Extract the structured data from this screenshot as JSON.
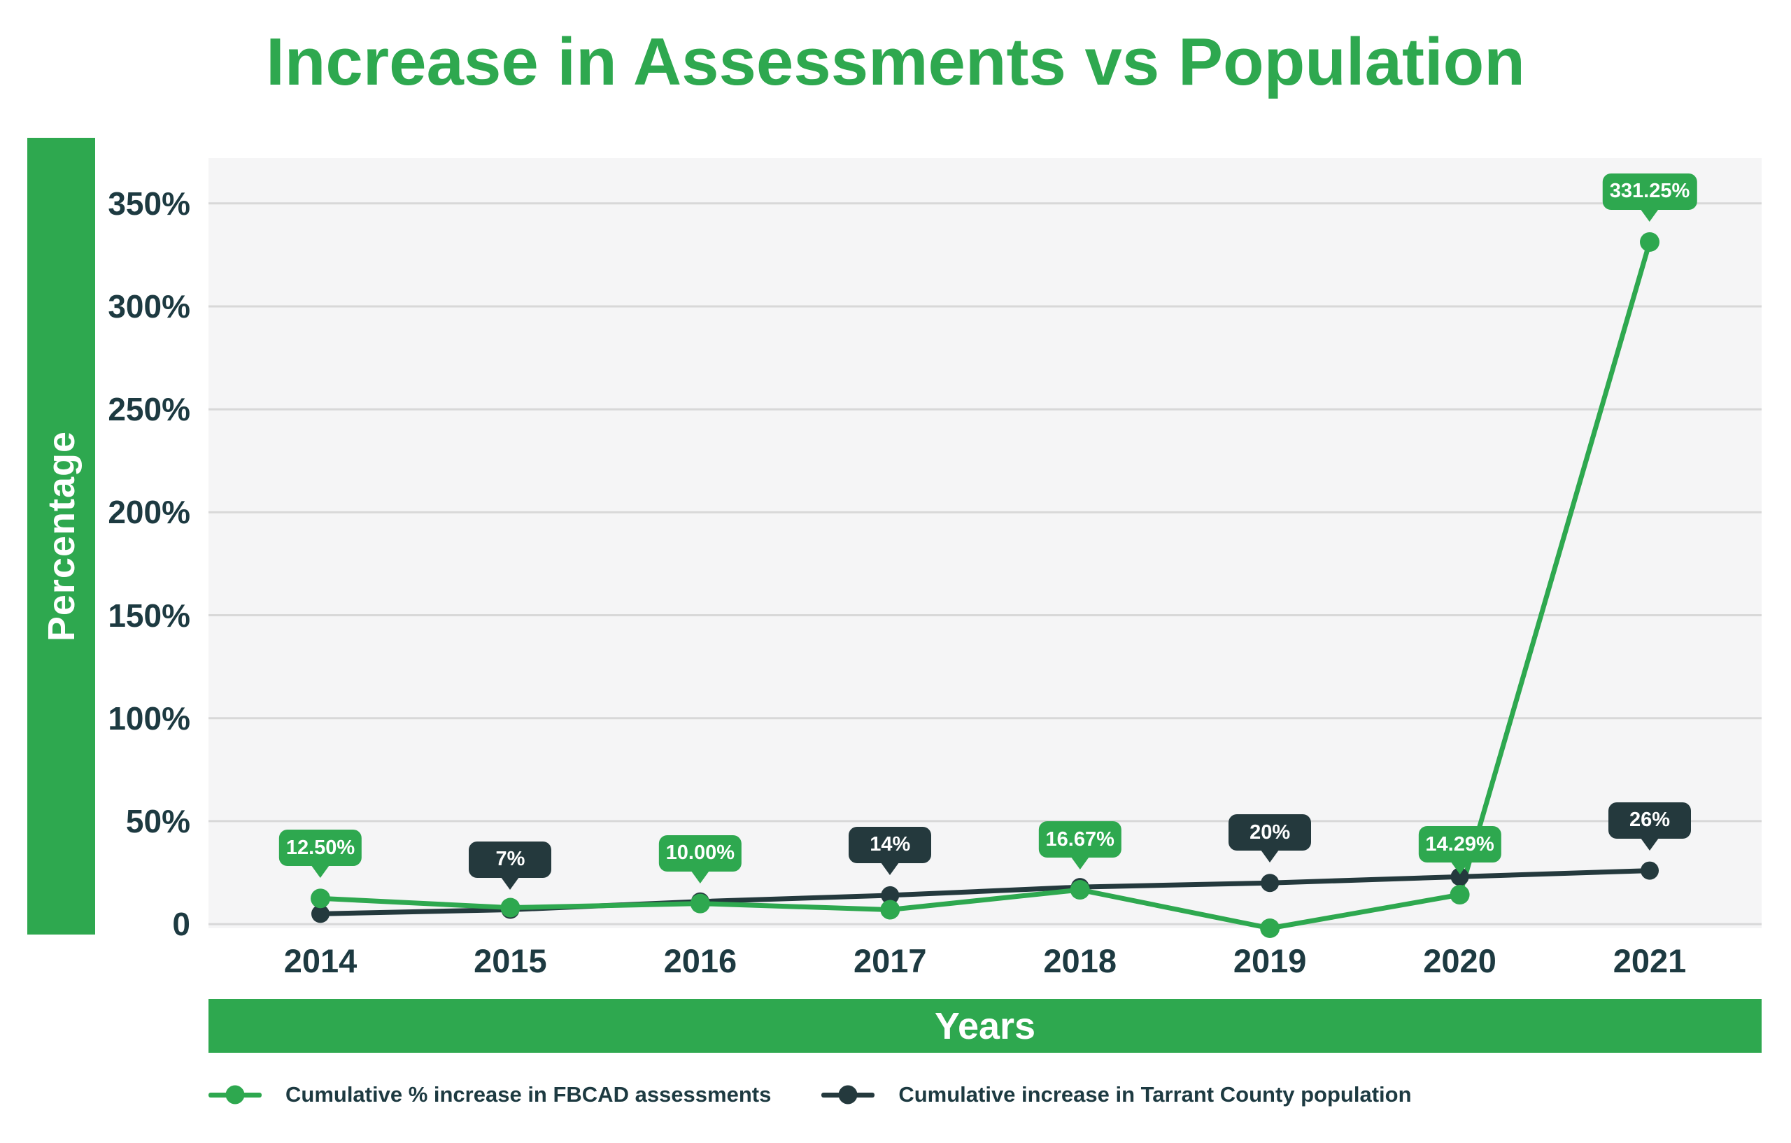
{
  "title": {
    "text": "Increase in Assessments vs Population"
  },
  "y_axis": {
    "label": "Percentage",
    "ticks": [
      {
        "label": "0",
        "value": 0
      },
      {
        "label": "50%",
        "value": 50
      },
      {
        "label": "100%",
        "value": 100
      },
      {
        "label": "150%",
        "value": 150
      },
      {
        "label": "200%",
        "value": 200
      },
      {
        "label": "250%",
        "value": 250
      },
      {
        "label": "300%",
        "value": 300
      },
      {
        "label": "350%",
        "value": 350
      }
    ]
  },
  "x_axis": {
    "label": "Years",
    "categories": [
      "2014",
      "2015",
      "2016",
      "2017",
      "2018",
      "2019",
      "2020",
      "2021"
    ]
  },
  "chart_data": {
    "type": "line",
    "categories": [
      "2014",
      "2015",
      "2016",
      "2017",
      "2018",
      "2019",
      "2020",
      "2021"
    ],
    "series": [
      {
        "name": "Cumulative % increase in FBCAD assessments",
        "color": "#2ea84f",
        "values": [
          12.5,
          8,
          10,
          7,
          16.67,
          -2,
          14.29,
          331.25
        ],
        "labeled_points": {
          "2014": "12.50%",
          "2016": "10.00%",
          "2018": "16.67%",
          "2020": "14.29%",
          "2021": "331.25%"
        }
      },
      {
        "name": "Cumulative increase in Tarrant County population",
        "color": "#24393d",
        "values": [
          5,
          7,
          11,
          14,
          18,
          20,
          23,
          26
        ],
        "labeled_points": {
          "2015": "7%",
          "2017": "14%",
          "2019": "20%",
          "2021": "26%"
        }
      }
    ],
    "annotations": [
      {
        "category": "2014",
        "series": 0,
        "text": "12.50%"
      },
      {
        "category": "2015",
        "series": 1,
        "text": "7%"
      },
      {
        "category": "2016",
        "series": 0,
        "text": "10.00%"
      },
      {
        "category": "2017",
        "series": 1,
        "text": "14%"
      },
      {
        "category": "2018",
        "series": 0,
        "text": "16.67%"
      },
      {
        "category": "2019",
        "series": 1,
        "text": "20%"
      },
      {
        "category": "2020",
        "series": 0,
        "text": "14.29%"
      },
      {
        "category": "2021",
        "series": 0,
        "text": "331.25%"
      },
      {
        "category": "2021",
        "series": 1,
        "text": "26%"
      }
    ],
    "title": "Increase in Assessments vs Population",
    "xlabel": "Years",
    "ylabel": "Percentage",
    "ylim_drawn": [
      -2,
      372
    ],
    "grid": true,
    "legend_position": "bottom-left"
  },
  "colors": {
    "green": "#2ea84f",
    "dark": "#24393d",
    "text": "#1d3a41",
    "grid": "#d8d8d8",
    "plot_bg": "#f5f5f6",
    "badge_text": "#ffffff"
  }
}
